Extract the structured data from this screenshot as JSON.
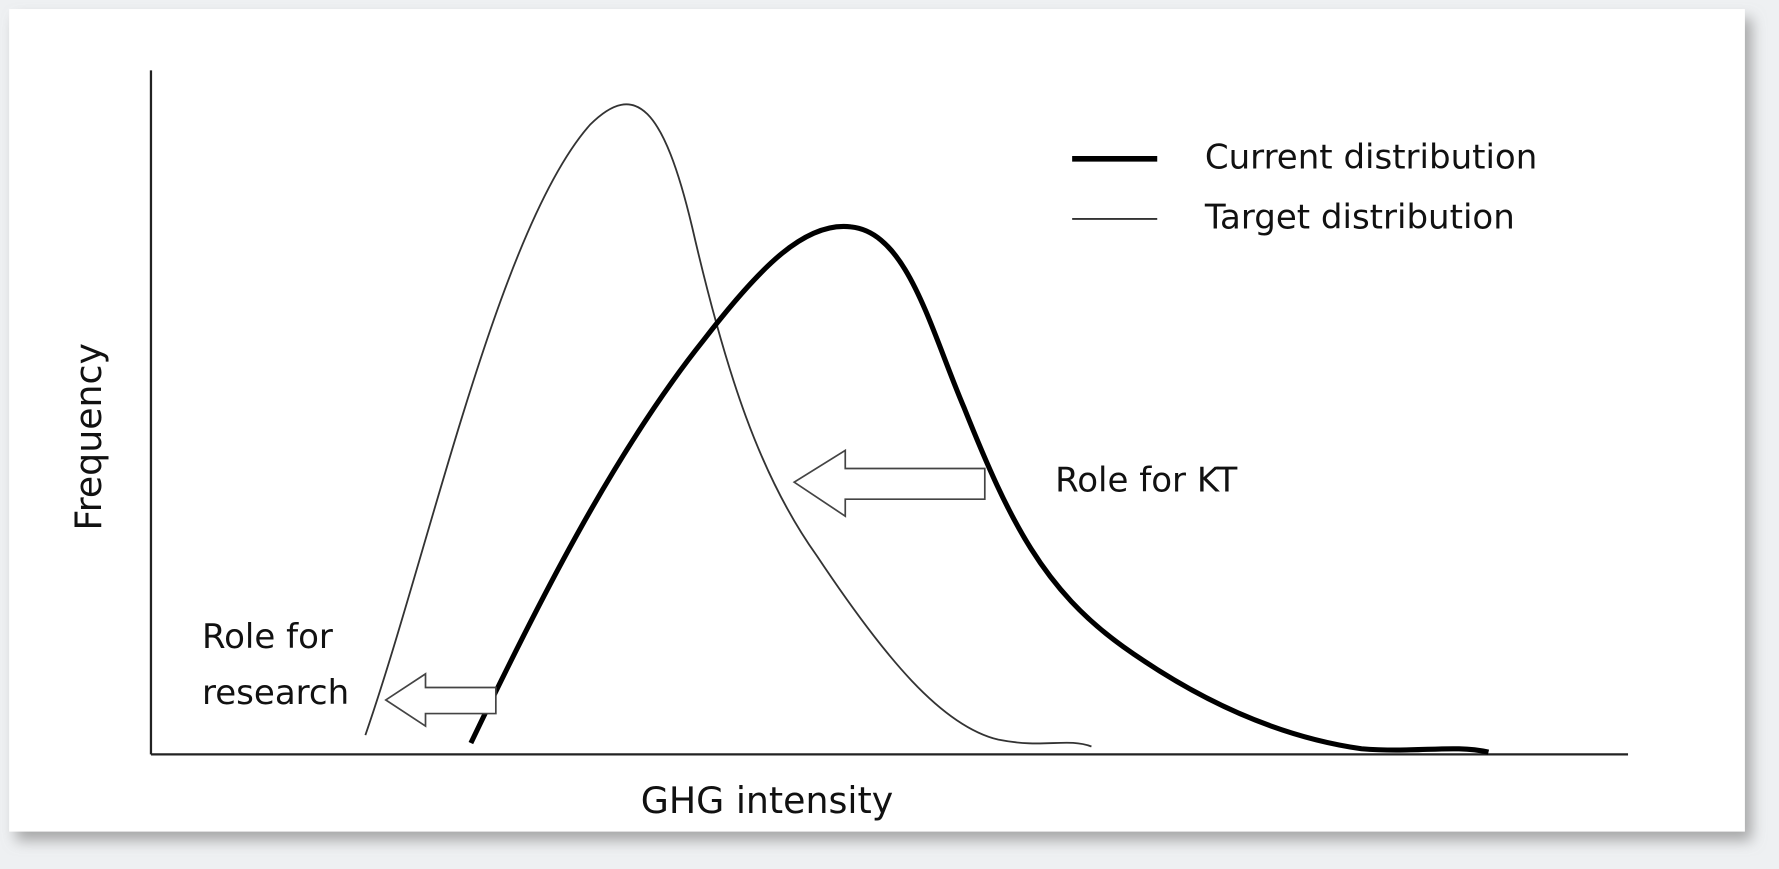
{
  "axes": {
    "x_label": "GHG intensity",
    "y_label": "Frequency"
  },
  "legend": [
    {
      "label": "Current distribution"
    },
    {
      "label": "Target distribution"
    }
  ],
  "annotations": {
    "kt": "Role for KT",
    "research": [
      "Role for",
      "research"
    ]
  }
}
